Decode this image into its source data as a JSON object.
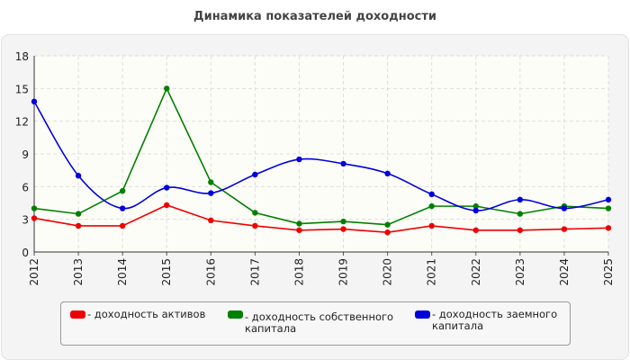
{
  "title": "Динамика показателей доходности",
  "colors": {
    "background_panel": "#f4f4f4",
    "plot_background": "#fdfdf8",
    "grid": "#dddddd"
  },
  "chart_data": {
    "type": "line",
    "title": "Динамика показателей доходности",
    "x": [
      "2012",
      "2013",
      "2014",
      "2015",
      "2016",
      "2017",
      "2018",
      "2019",
      "2020",
      "2021",
      "2022",
      "2023",
      "2024",
      "2025"
    ],
    "ylim": [
      0,
      18
    ],
    "yticks": [
      0,
      3,
      6,
      9,
      12,
      15,
      18
    ],
    "grid": true,
    "legend_position": "bottom",
    "series": [
      {
        "name": "- доходность активов",
        "color": "#ee0000",
        "smooth": false,
        "values": [
          3.1,
          2.4,
          2.4,
          4.3,
          2.9,
          2.4,
          2.0,
          2.1,
          1.8,
          2.4,
          2.0,
          2.0,
          2.1,
          2.2
        ]
      },
      {
        "name": "- доходность собственного капитала",
        "color": "#008000",
        "smooth": false,
        "values": [
          4.0,
          3.5,
          5.6,
          15.0,
          6.4,
          3.6,
          2.6,
          2.8,
          2.5,
          4.2,
          4.2,
          3.5,
          4.2,
          4.0
        ]
      },
      {
        "name": "- доходность заемного капитала",
        "color": "#0000dd",
        "smooth": true,
        "values": [
          13.8,
          7.0,
          4.0,
          5.9,
          5.4,
          7.1,
          8.5,
          8.1,
          7.2,
          5.3,
          3.8,
          4.8,
          4.0,
          4.8
        ]
      }
    ]
  }
}
